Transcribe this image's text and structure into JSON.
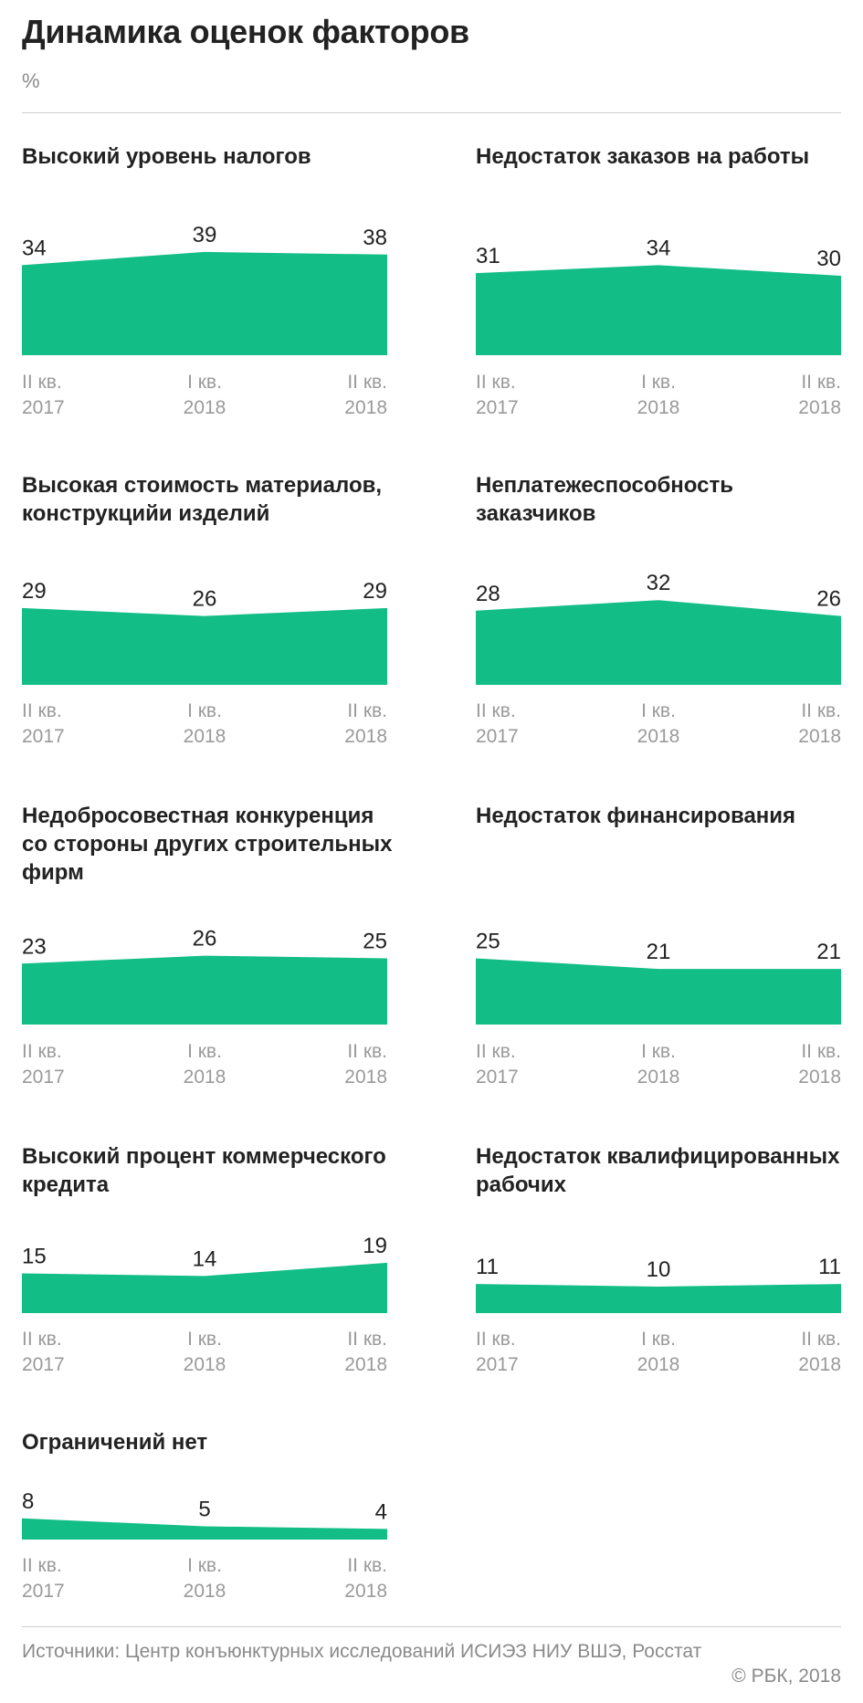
{
  "title": "Динамика оценок факторов",
  "unit": "%",
  "source": "Источники: Центр конъюнктурных исследований ИСИЭЗ НИУ ВШЭ, Росстат",
  "copyright": "© РБК, 2018",
  "chart_data": [
    {
      "type": "area",
      "title": "Высокий уровень налогов",
      "x": [
        [
          "II кв.",
          "2017"
        ],
        [
          "I кв.",
          "2018"
        ],
        [
          "II кв.",
          "2018"
        ]
      ],
      "values": [
        34,
        39,
        38
      ],
      "color": "#12bd86"
    },
    {
      "type": "area",
      "title": "Недостаток заказов на работы",
      "x": [
        [
          "II кв.",
          "2017"
        ],
        [
          "I кв.",
          "2018"
        ],
        [
          "II кв.",
          "2018"
        ]
      ],
      "values": [
        31,
        34,
        30
      ],
      "color": "#12bd86"
    },
    {
      "type": "area",
      "title": "Высокая стоимость материалов, конструкцийи изделий",
      "x": [
        [
          "II кв.",
          "2017"
        ],
        [
          "I кв.",
          "2018"
        ],
        [
          "II кв.",
          "2018"
        ]
      ],
      "values": [
        29,
        26,
        29
      ],
      "color": "#12bd86"
    },
    {
      "type": "area",
      "title": "Неплатежеспособность заказчиков",
      "x": [
        [
          "II кв.",
          "2017"
        ],
        [
          "I кв.",
          "2018"
        ],
        [
          "II кв.",
          "2018"
        ]
      ],
      "values": [
        28,
        32,
        26
      ],
      "color": "#12bd86"
    },
    {
      "type": "area",
      "title": "Недобросовестная конкуренция со стороны других строительных фирм",
      "x": [
        [
          "II кв.",
          "2017"
        ],
        [
          "I кв.",
          "2018"
        ],
        [
          "II кв.",
          "2018"
        ]
      ],
      "values": [
        23,
        26,
        25
      ],
      "color": "#12bd86"
    },
    {
      "type": "area",
      "title": "Недостаток финансирования",
      "x": [
        [
          "II кв.",
          "2017"
        ],
        [
          "I кв.",
          "2018"
        ],
        [
          "II кв.",
          "2018"
        ]
      ],
      "values": [
        25,
        21,
        21
      ],
      "color": "#12bd86"
    },
    {
      "type": "area",
      "title": "Высокий процент коммерческого кредита",
      "x": [
        [
          "II кв.",
          "2017"
        ],
        [
          "I кв.",
          "2018"
        ],
        [
          "II кв.",
          "2018"
        ]
      ],
      "values": [
        15,
        14,
        19
      ],
      "color": "#12bd86"
    },
    {
      "type": "area",
      "title": "Недостаток квалифицированных рабочих",
      "x": [
        [
          "II кв.",
          "2017"
        ],
        [
          "I кв.",
          "2018"
        ],
        [
          "II кв.",
          "2018"
        ]
      ],
      "values": [
        11,
        10,
        11
      ],
      "color": "#12bd86"
    },
    {
      "type": "area",
      "title": "Ограничений нет",
      "x": [
        [
          "II кв.",
          "2017"
        ],
        [
          "I кв.",
          "2018"
        ],
        [
          "II кв.",
          "2018"
        ]
      ],
      "values": [
        8,
        5,
        4
      ],
      "color": "#12bd86"
    }
  ]
}
